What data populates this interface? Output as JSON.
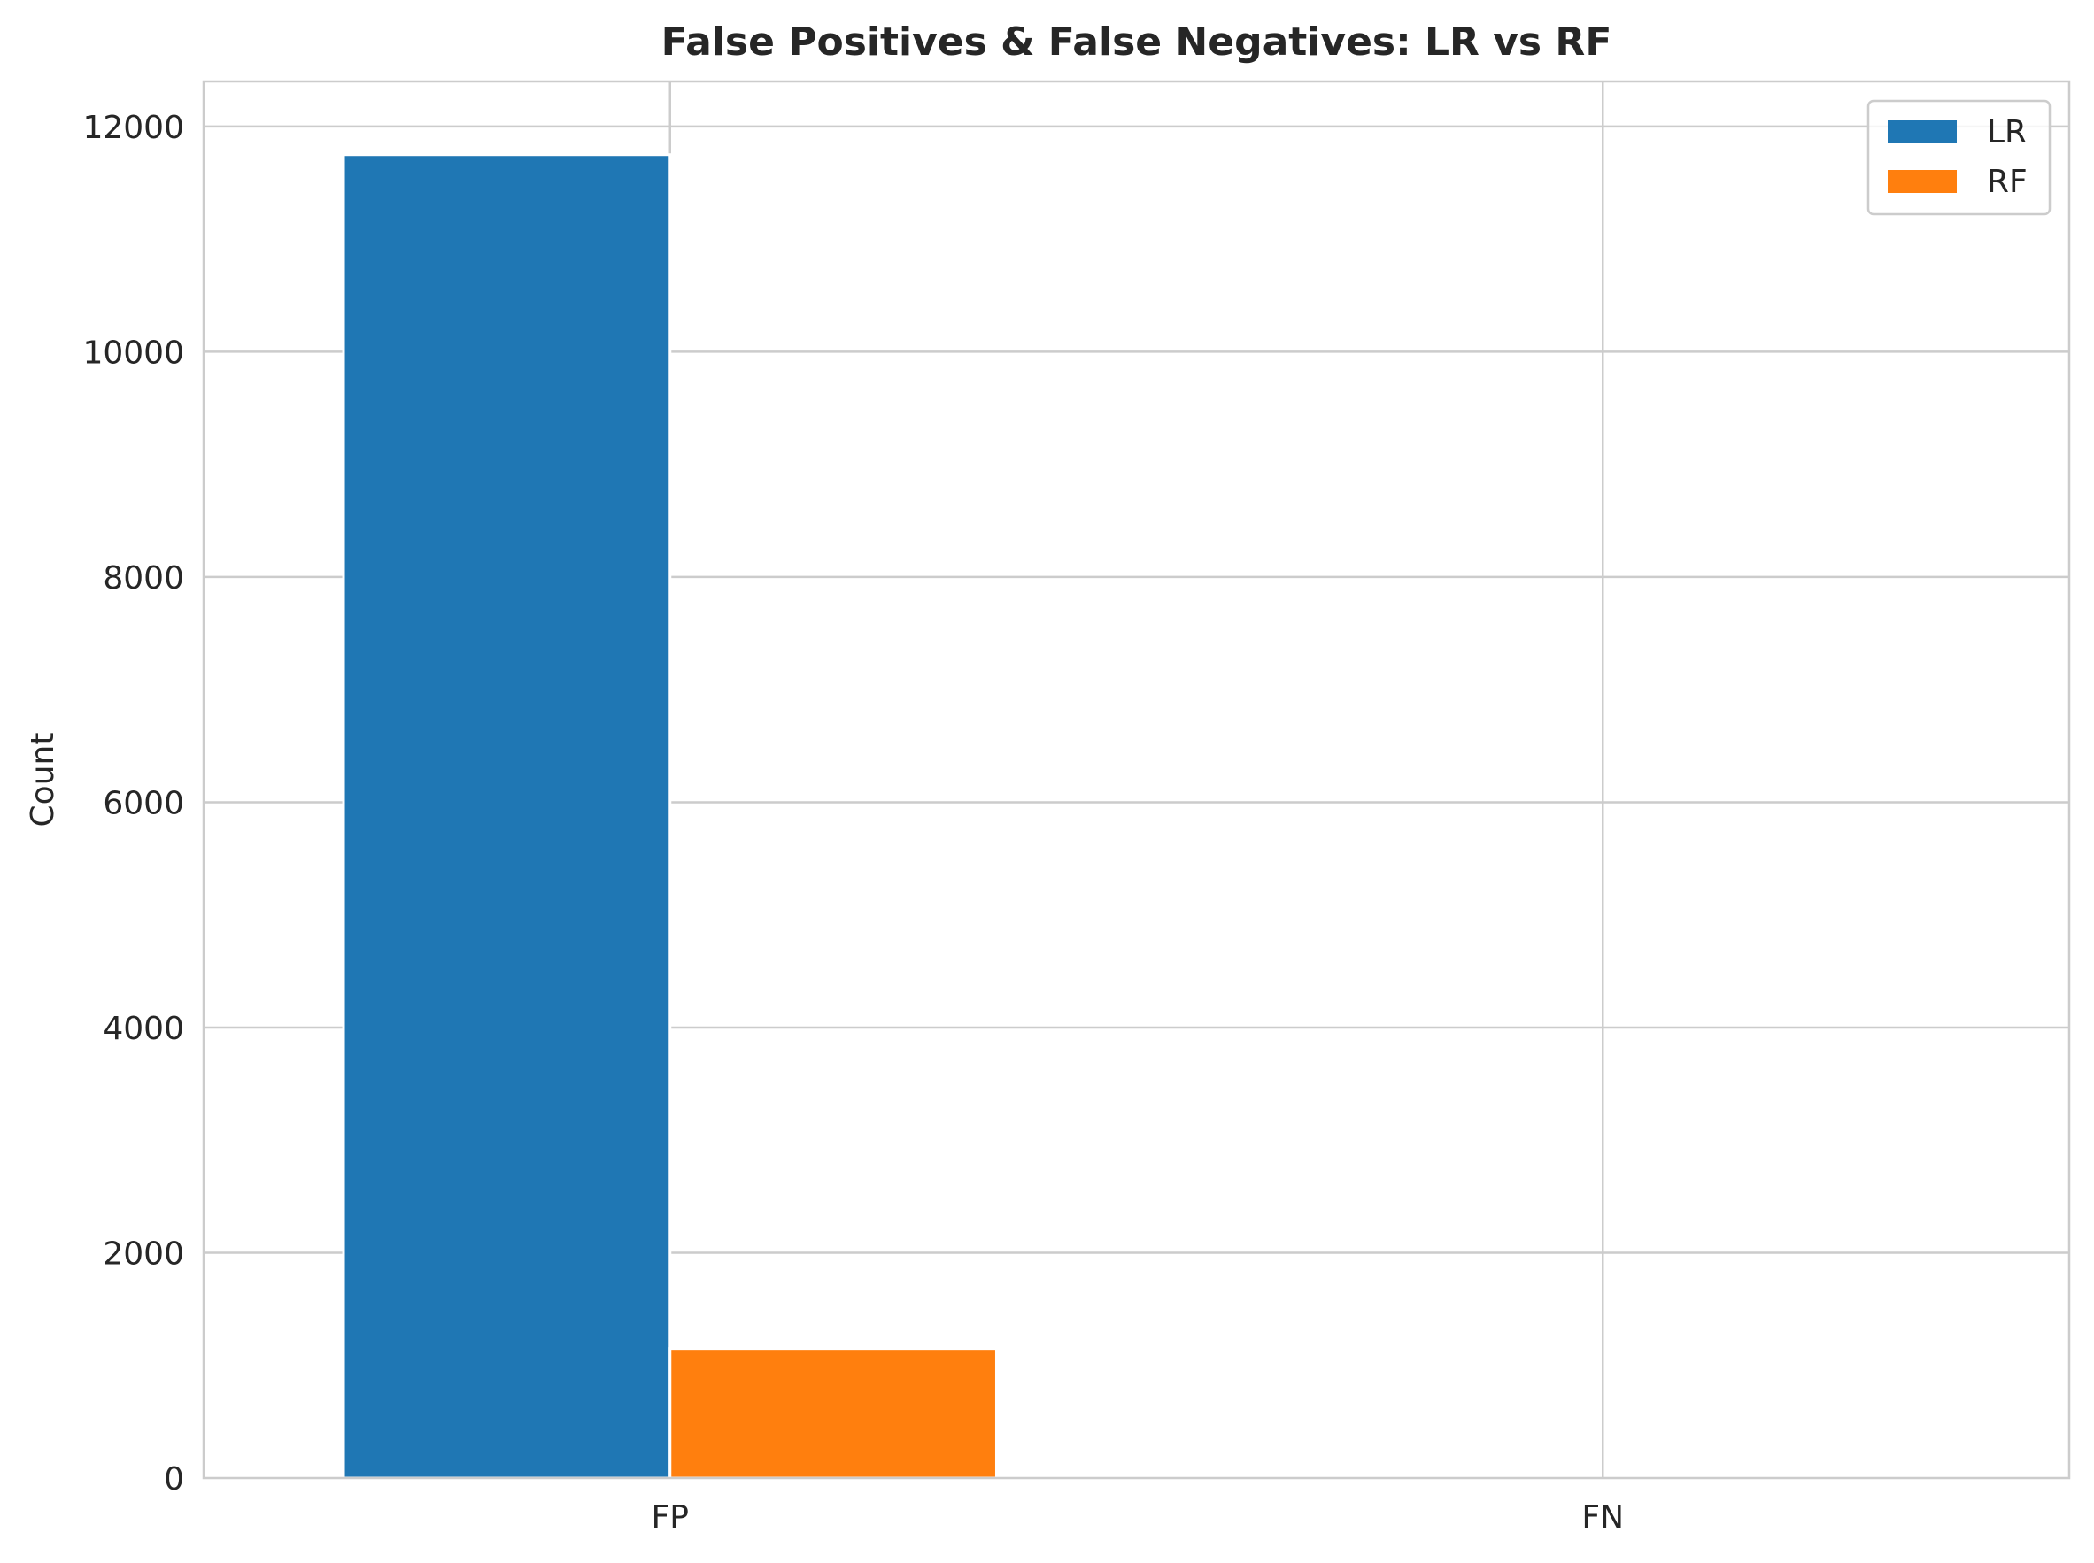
{
  "chart_data": {
    "type": "bar",
    "title": "False Positives & False Negatives: LR vs RF",
    "xlabel": "",
    "ylabel": "Count",
    "categories": [
      "FP",
      "FN"
    ],
    "series": [
      {
        "name": "LR",
        "values": [
          11750,
          0
        ],
        "color": "#1f77b4"
      },
      {
        "name": "RF",
        "values": [
          1150,
          0
        ],
        "color": "#ff7f0e"
      }
    ],
    "ylim": [
      0,
      12400
    ],
    "yticks": [
      0,
      2000,
      4000,
      6000,
      8000,
      10000,
      12000
    ],
    "grid": true,
    "legend_position": "top-right"
  }
}
